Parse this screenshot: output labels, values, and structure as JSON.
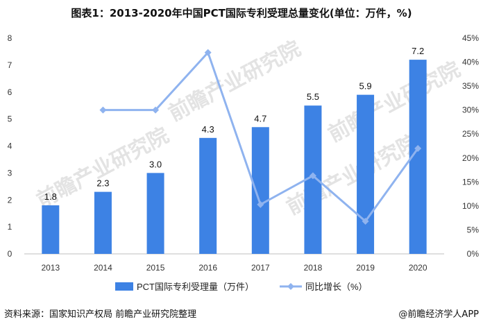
{
  "title": "图表1：2013-2020年中国PCT国际专利受理总量变化(单位：万件，%)",
  "source": "资料来源：国家知识产权局 前瞻产业研究院整理",
  "brand": "@前瞻经济学人APP",
  "watermark": "前瞻产业研究院",
  "colors": {
    "bar": "#3d82e4",
    "line": "#8fb3ef",
    "text": "#333333"
  },
  "chart_data": {
    "type": "bar",
    "title": "图表1：2013-2020年中国PCT国际专利受理总量变化(单位：万件，%)",
    "categories": [
      "2013",
      "2014",
      "2015",
      "2016",
      "2017",
      "2018",
      "2019",
      "2020"
    ],
    "series": [
      {
        "name": "PCT国际专利受理量（万件）",
        "type": "bar",
        "axis": "left",
        "values": [
          1.8,
          2.3,
          3.0,
          4.3,
          4.7,
          5.5,
          5.9,
          7.2
        ],
        "labels": [
          "1.8",
          "2.3",
          "3.0",
          "4.3",
          "4.7",
          "5.5",
          "5.9",
          "7.2"
        ]
      },
      {
        "name": "同比增长（%）",
        "type": "line",
        "axis": "right",
        "values": [
          null,
          30.0,
          30.0,
          42.0,
          10.3,
          16.3,
          6.8,
          22.0
        ]
      }
    ],
    "y_left": {
      "min": 0,
      "max": 8,
      "ticks": [
        "0",
        "1",
        "2",
        "3",
        "4",
        "5",
        "6",
        "7",
        "8"
      ]
    },
    "y_right": {
      "min": 0,
      "max": 45,
      "ticks": [
        "0%",
        "5%",
        "10%",
        "15%",
        "20%",
        "25%",
        "30%",
        "35%",
        "40%",
        "45%"
      ]
    },
    "grid": false,
    "legend": "bottom"
  }
}
